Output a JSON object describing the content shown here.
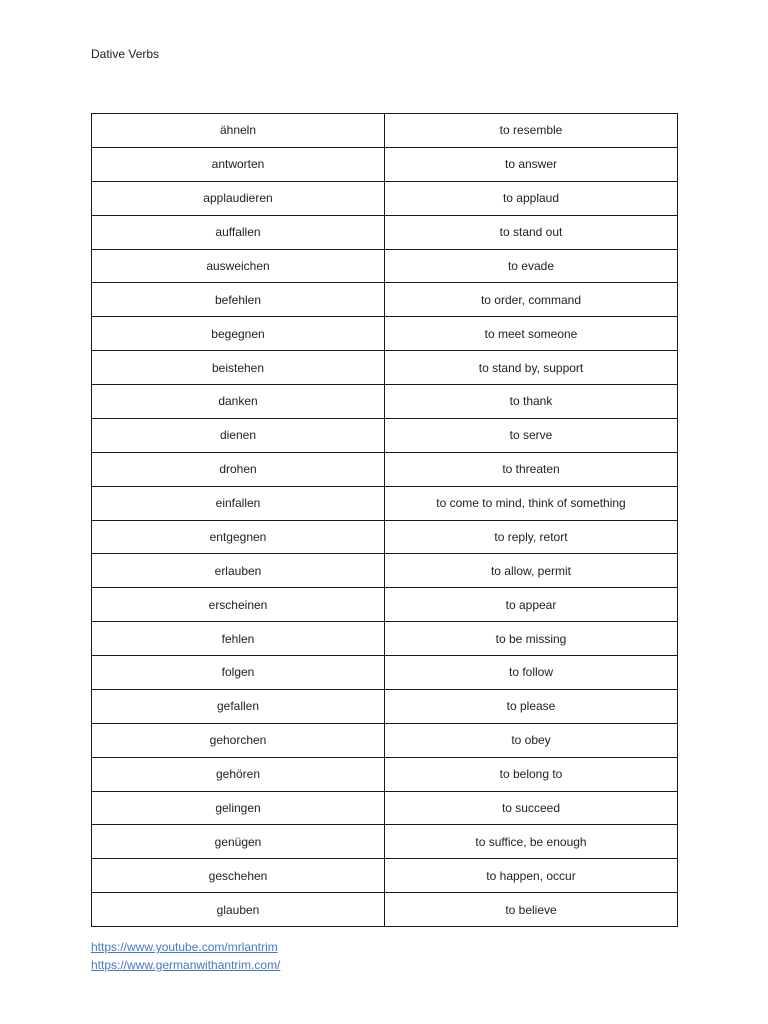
{
  "page": {
    "title": "Dative Verbs"
  },
  "table": {
    "rows": [
      {
        "german": "ähneln",
        "english": "to resemble"
      },
      {
        "german": "antworten",
        "english": "to answer"
      },
      {
        "german": "applaudieren",
        "english": "to applaud"
      },
      {
        "german": "auffallen",
        "english": "to stand out"
      },
      {
        "german": "ausweichen",
        "english": "to evade"
      },
      {
        "german": "befehlen",
        "english": "to order, command"
      },
      {
        "german": "begegnen",
        "english": "to meet someone"
      },
      {
        "german": "beistehen",
        "english": "to stand by, support"
      },
      {
        "german": "danken",
        "english": "to thank"
      },
      {
        "german": "dienen",
        "english": "to serve"
      },
      {
        "german": "drohen",
        "english": "to threaten"
      },
      {
        "german": "einfallen",
        "english": "to come to mind, think of something"
      },
      {
        "german": "entgegnen",
        "english": "to reply, retort"
      },
      {
        "german": "erlauben",
        "english": "to allow, permit"
      },
      {
        "german": "erscheinen",
        "english": "to appear"
      },
      {
        "german": "fehlen",
        "english": "to be missing"
      },
      {
        "german": "folgen",
        "english": "to follow"
      },
      {
        "german": "gefallen",
        "english": "to please"
      },
      {
        "german": "gehorchen",
        "english": "to obey"
      },
      {
        "german": "gehören",
        "english": "to belong to"
      },
      {
        "german": "gelingen",
        "english": "to succeed"
      },
      {
        "german": "genügen",
        "english": "to suffice, be enough"
      },
      {
        "german": "geschehen",
        "english": "to happen, occur"
      },
      {
        "german": "glauben",
        "english": "to believe"
      }
    ]
  },
  "links": [
    {
      "label": "https://www.youtube.com/mrlantrim"
    },
    {
      "label": "https://www.germanwithantrim.com/"
    }
  ],
  "colors": {
    "link": "#4677c8",
    "text": "#222222",
    "border": "#1a1a1a",
    "background": "#ffffff"
  }
}
